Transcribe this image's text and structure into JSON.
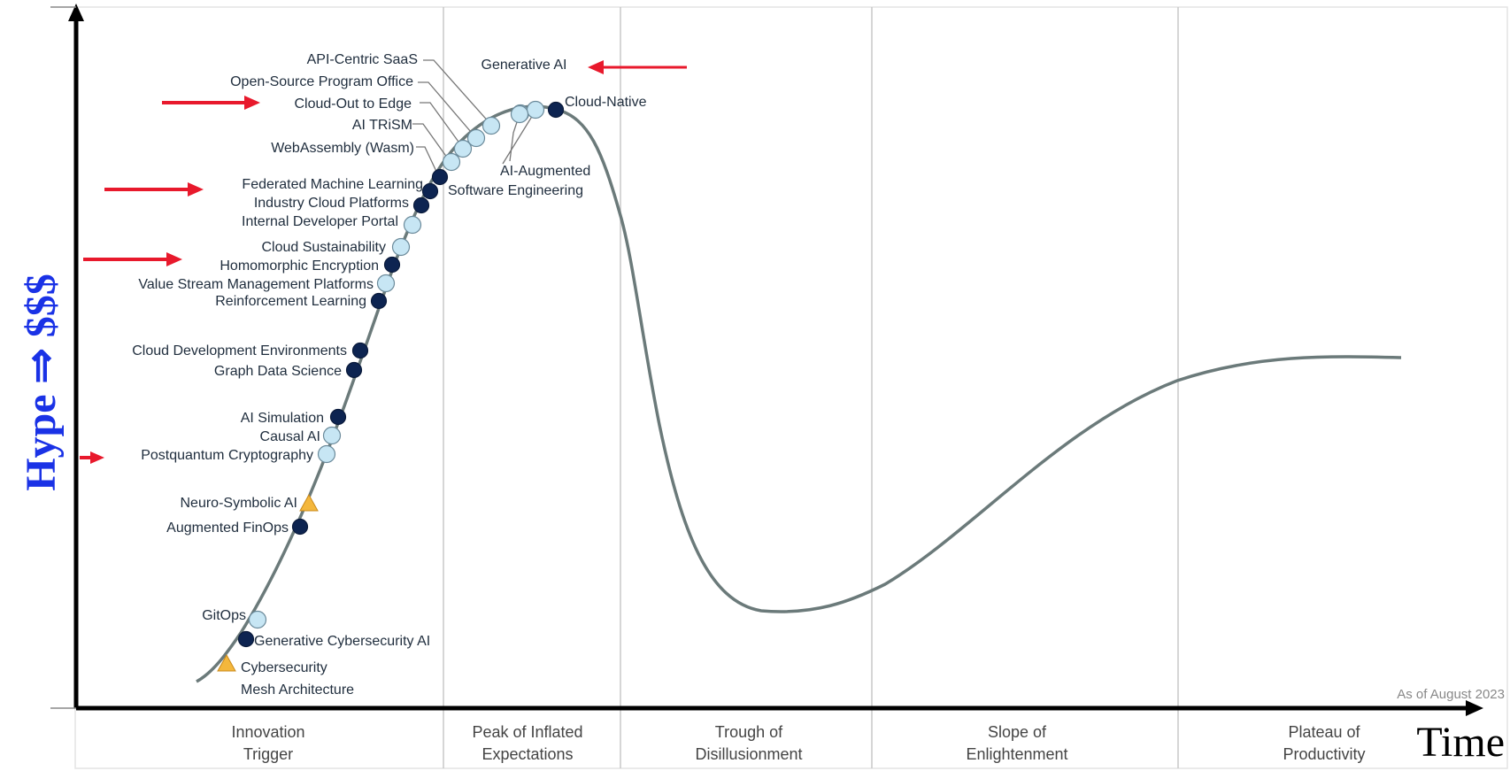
{
  "chart_data": {
    "type": "line",
    "title": "",
    "xlabel": "Time",
    "ylabel": "Hype ⇒ $$$",
    "annotation": "As of August 2023",
    "grid": "vertical phase dividers",
    "phases": [
      {
        "line1": "Innovation",
        "line2": "Trigger"
      },
      {
        "line1": "Peak of Inflated",
        "line2": "Expectations"
      },
      {
        "line1": "Trough of",
        "line2": "Disillusionment"
      },
      {
        "line1": "Slope of",
        "line2": "Enlightenment"
      },
      {
        "line1": "Plateau of",
        "line2": "Productivity"
      }
    ],
    "legend_colors": {
      "dark": "#0d2451",
      "light": "#c7e6f4",
      "triangle": "#f4b73c",
      "curve": "#6b7a7a",
      "arrow": "#e8192c"
    },
    "technologies": [
      {
        "name": "Cybersecurity Mesh Architecture",
        "lines": [
          "Cybersecurity",
          "Mesh Architecture"
        ],
        "marker": "triangle",
        "phase": "Innovation Trigger"
      },
      {
        "name": "Generative Cybersecurity AI",
        "marker": "dark",
        "phase": "Innovation Trigger"
      },
      {
        "name": "GitOps",
        "marker": "light",
        "phase": "Innovation Trigger"
      },
      {
        "name": "Augmented FinOps",
        "marker": "dark",
        "phase": "Innovation Trigger"
      },
      {
        "name": "Neuro-Symbolic AI",
        "marker": "triangle",
        "phase": "Innovation Trigger"
      },
      {
        "name": "Postquantum Cryptography",
        "marker": "light",
        "phase": "Innovation Trigger",
        "highlighted": true
      },
      {
        "name": "Causal AI",
        "marker": "light",
        "phase": "Innovation Trigger"
      },
      {
        "name": "AI Simulation",
        "marker": "dark",
        "phase": "Innovation Trigger"
      },
      {
        "name": "Graph Data Science",
        "marker": "dark",
        "phase": "Innovation Trigger"
      },
      {
        "name": "Cloud Development Environments",
        "marker": "dark",
        "phase": "Innovation Trigger"
      },
      {
        "name": "Reinforcement Learning",
        "marker": "dark",
        "phase": "Innovation Trigger"
      },
      {
        "name": "Value Stream Management Platforms",
        "marker": "light",
        "phase": "Innovation Trigger"
      },
      {
        "name": "Homomorphic Encryption",
        "marker": "dark",
        "phase": "Innovation Trigger",
        "highlighted": true
      },
      {
        "name": "Cloud Sustainability",
        "marker": "light",
        "phase": "Innovation Trigger"
      },
      {
        "name": "Internal Developer Portal",
        "marker": "light",
        "phase": "Innovation Trigger"
      },
      {
        "name": "Industry Cloud Platforms",
        "marker": "dark",
        "phase": "Innovation Trigger"
      },
      {
        "name": "Federated Machine Learning",
        "marker": "dark",
        "phase": "Innovation Trigger",
        "highlighted": true
      },
      {
        "name": "Software Engineering",
        "marker": "dark",
        "phase": "Innovation Trigger"
      },
      {
        "name": "WebAssembly (Wasm)",
        "marker": "light",
        "phase": "Peak of Inflated Expectations"
      },
      {
        "name": "AI TRiSM",
        "marker": "light",
        "phase": "Peak of Inflated Expectations"
      },
      {
        "name": "Cloud-Out to Edge",
        "marker": "light",
        "phase": "Peak of Inflated Expectations",
        "highlighted": true
      },
      {
        "name": "Open-Source Program Office",
        "marker": "light",
        "phase": "Peak of Inflated Expectations"
      },
      {
        "name": "API-Centric SaaS",
        "marker": "light",
        "phase": "Peak of Inflated Expectations"
      },
      {
        "name": "Generative AI",
        "marker": "light",
        "phase": "Peak of Inflated Expectations",
        "highlighted": true
      },
      {
        "name": "AI-Augmented",
        "marker": "light",
        "phase": "Peak of Inflated Expectations"
      },
      {
        "name": "Cloud-Native",
        "marker": "dark",
        "phase": "Peak of Inflated Expectations"
      }
    ]
  }
}
